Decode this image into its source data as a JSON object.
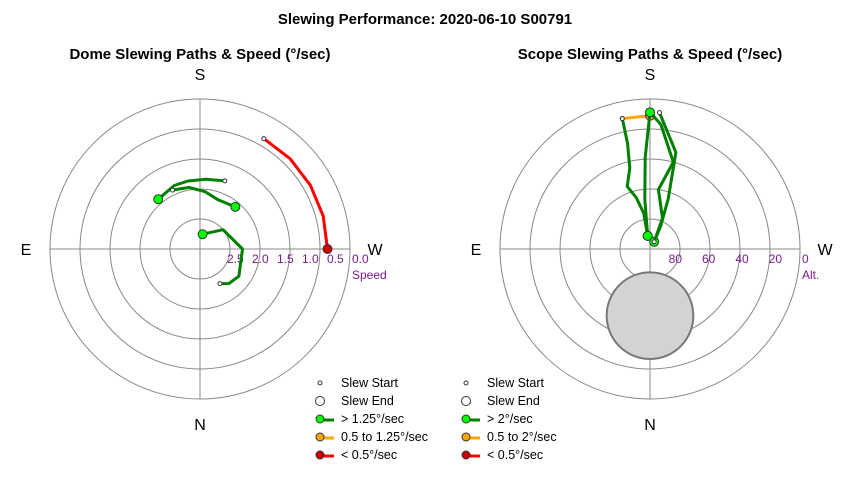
{
  "figure": {
    "title": "Slewing Performance: 2020-06-10 S00791"
  },
  "colors": {
    "fast": "#008000",
    "fast_marker": "#00ff00",
    "medium": "#ffa500",
    "slow": "#ff0000",
    "slow_marker": "#cc0000",
    "ring": "#888888",
    "label": "#7a1a8c",
    "obscured_fill": "#d3d3d3",
    "obscured_edge": "#777777"
  },
  "chart_data": [
    {
      "type": "scatter",
      "projection": "polar",
      "title": "Dome Slewing Paths & Speed (°/sec)",
      "compass": {
        "top": "S",
        "right": "W",
        "bottom": "N",
        "left": "E"
      },
      "radial": {
        "name": "Speed",
        "ticks": [
          "2.5",
          "2.0",
          "1.5",
          "1.0",
          "0.5",
          "0.0"
        ],
        "tick_values": [
          2.5,
          2.0,
          1.5,
          1.0,
          0.5,
          0.0
        ],
        "center_value": 3.0,
        "outer_value": 0.0
      },
      "angle_note": "azimuth in degrees: 0 = N, 90 = E, 180 = S, 270 = W",
      "paths": [
        {
          "speed_class": "slow",
          "points": [
            [
              150,
              0.45
            ],
            [
              135,
              0.45
            ],
            [
              120,
              0.45
            ],
            [
              105,
              0.45
            ],
            [
              90,
              0.45
            ]
          ],
          "start": [
            150,
            0.45
          ],
          "end": [
            90,
            0.45
          ]
        },
        {
          "speed_class": "fast",
          "points": [
            [
              160,
              1.55
            ],
            [
              175,
              1.6
            ],
            [
              190,
              1.62
            ],
            [
              202,
              1.63
            ],
            [
              220,
              1.7
            ]
          ],
          "start": [
            160,
            1.55
          ],
          "end": [
            220,
            1.7
          ]
        },
        {
          "speed_class": "fast",
          "points": [
            [
              170,
              2.7
            ],
            [
              130,
              2.4
            ],
            [
              90,
              2.15
            ],
            [
              55,
              2.05
            ],
            [
              40,
              2.1
            ],
            [
              30,
              2.2
            ]
          ],
          "start": [
            30,
            2.2
          ],
          "end": [
            170,
            2.7
          ]
        },
        {
          "speed_class": "fast",
          "points": [
            [
              140,
              1.9
            ],
            [
              160,
              1.95
            ],
            [
              175,
              1.85
            ],
            [
              190,
              1.75
            ],
            [
              205,
              1.7
            ]
          ],
          "start": [
            205,
            1.7
          ],
          "end": [
            140,
            1.9
          ]
        }
      ],
      "legend": [
        {
          "marker": "start",
          "label": "Slew Start"
        },
        {
          "marker": "end",
          "label": "Slew End"
        },
        {
          "marker": "fast",
          "label": "> 1.25°/sec"
        },
        {
          "marker": "medium",
          "label": "0.5 to 1.25°/sec"
        },
        {
          "marker": "slow",
          "label": "< 0.5°/sec"
        }
      ]
    },
    {
      "type": "scatter",
      "projection": "polar",
      "title": "Scope Slewing Paths & Speed (°/sec)",
      "compass": {
        "top": "S",
        "right": "W",
        "bottom": "N",
        "left": "E"
      },
      "radial": {
        "name": "Alt.",
        "ticks": [
          "80",
          "60",
          "40",
          "20",
          "0"
        ],
        "tick_values": [
          80,
          60,
          40,
          20,
          0
        ],
        "center_value": 90,
        "outer_value": 0
      },
      "angle_note": "azimuth in degrees: 0 = N, 90 = E, 180 = S, 270 = W",
      "obscured_region": {
        "azimuth": 0,
        "altitude_center": 50,
        "angular_radius": 26
      },
      "paths": [
        {
          "speed_class": "medium",
          "points": [
            [
              192,
              10
            ],
            [
              180,
              10
            ]
          ],
          "start": [
            192,
            10
          ],
          "end": [
            180,
            10
          ]
        },
        {
          "speed_class": "fast",
          "points": [
            [
              180,
              8
            ],
            [
              183,
              35
            ],
            [
              186,
              60
            ],
            [
              190,
              82
            ]
          ],
          "start": [
            180,
            8
          ],
          "end": [
            190,
            82
          ]
        },
        {
          "speed_class": "fast",
          "points": [
            [
              192,
              10
            ],
            [
              192,
              25
            ],
            [
              194,
              40
            ],
            [
              200,
              50
            ],
            [
              195,
              58
            ],
            [
              190,
              68
            ],
            [
              190,
              82
            ]
          ],
          "start": [
            192,
            10
          ],
          "end": [
            190,
            82
          ]
        },
        {
          "speed_class": "fast",
          "points": [
            [
              176,
              8
            ],
            [
              165,
              30
            ],
            [
              160,
              58
            ],
            [
              155,
              75
            ],
            [
              150,
              85
            ]
          ],
          "start": [
            176,
            8
          ],
          "end": [
            150,
            85
          ]
        },
        {
          "speed_class": "fast",
          "points": [
            [
              150,
              85
            ],
            [
              158,
              70
            ],
            [
              172,
              54
            ],
            [
              165,
              36
            ],
            [
              175,
              15
            ],
            [
              180,
              8
            ]
          ],
          "start": [
            150,
            85
          ],
          "end": [
            180,
            8
          ]
        }
      ],
      "legend": [
        {
          "marker": "start",
          "label": "Slew Start"
        },
        {
          "marker": "end",
          "label": "Slew End"
        },
        {
          "marker": "fast",
          "label": "> 2°/sec"
        },
        {
          "marker": "medium",
          "label": "0.5 to 2°/sec"
        },
        {
          "marker": "slow",
          "label": "< 0.5°/sec"
        }
      ]
    }
  ]
}
